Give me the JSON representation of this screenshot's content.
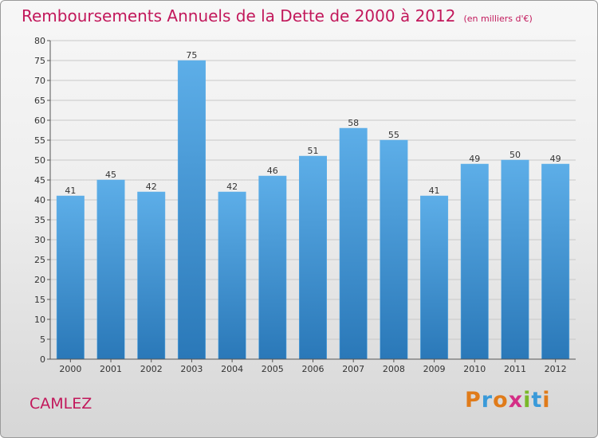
{
  "title": {
    "main": "Remboursements Annuels de la Dette de 2000 à 2012",
    "unit": "(en milliers d'€)"
  },
  "town": "CAMLEZ",
  "logo": {
    "letters": [
      "P",
      "r",
      "o",
      "x",
      "i",
      "t",
      "i"
    ],
    "colors": [
      "#e07b1a",
      "#3a9ad9",
      "#e07b1a",
      "#d42e86",
      "#7ab829",
      "#3a9ad9",
      "#e07b1a"
    ]
  },
  "chart_data": {
    "type": "bar",
    "categories": [
      "2000",
      "2001",
      "2002",
      "2003",
      "2004",
      "2005",
      "2006",
      "2007",
      "2008",
      "2009",
      "2010",
      "2011",
      "2012"
    ],
    "values": [
      41,
      45,
      42,
      75,
      42,
      46,
      51,
      58,
      55,
      41,
      49,
      50,
      49
    ],
    "data_labels": [
      "41",
      "45",
      "42",
      "75",
      "42",
      "46",
      "51",
      "58",
      "55",
      "41",
      "49",
      "50",
      "49"
    ],
    "yticks": [
      "0",
      "5",
      "10",
      "15",
      "20",
      "25",
      "30",
      "35",
      "40",
      "45",
      "50",
      "55",
      "60",
      "65",
      "70",
      "75",
      "80"
    ],
    "ylim": [
      0,
      80
    ],
    "ystep": 5,
    "grid": true,
    "bar_color": "#3d95d8"
  }
}
